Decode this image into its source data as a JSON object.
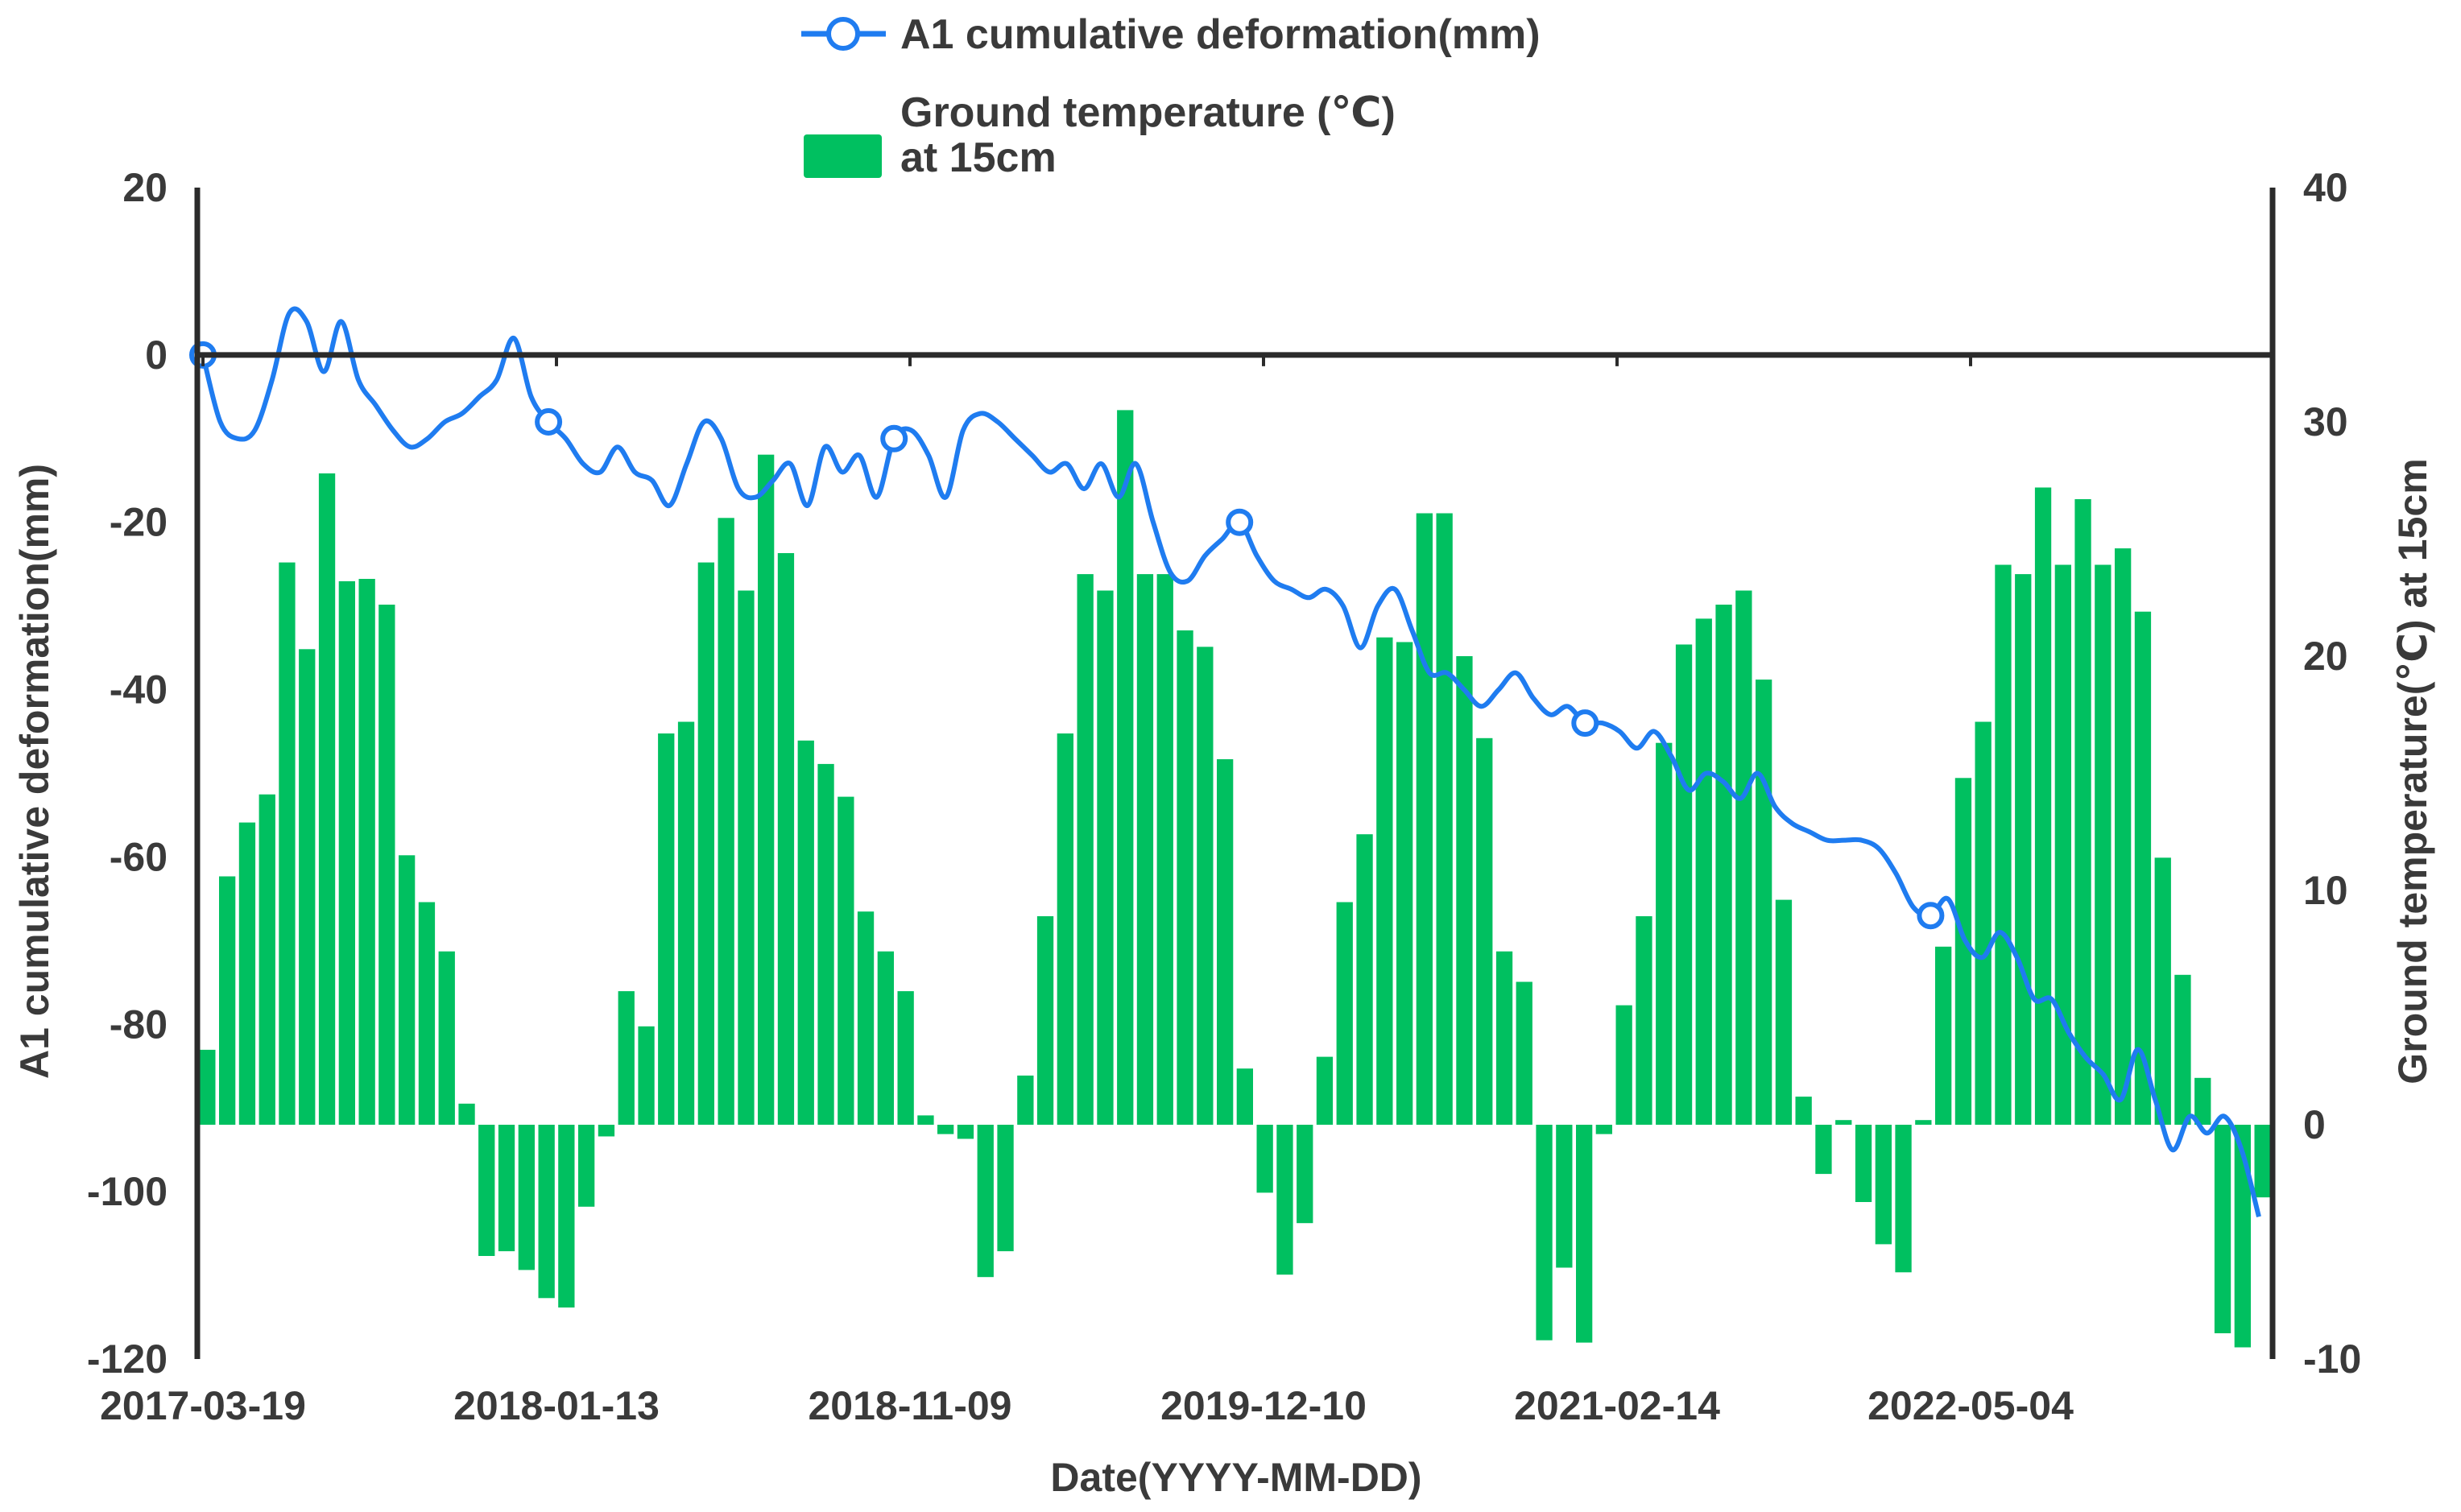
{
  "chart_data": {
    "type": "bar+line",
    "xlabel": "Date(YYYY-MM-DD)",
    "y_left_label": "A1 cumulative deformation(mm)",
    "y_right_label": "Ground temperature(℃) at 15cm",
    "y_left_ticks": [
      "20",
      "0",
      "-20",
      "-40",
      "-60",
      "-80",
      "-100",
      "-120"
    ],
    "y_right_ticks": [
      "40",
      "30",
      "20",
      "10",
      "0",
      "-10"
    ],
    "y_left_lim": [
      -120,
      20
    ],
    "y_right_lim": [
      -10,
      40
    ],
    "x_ticks": [
      "2017-03-19",
      "2018-01-13",
      "2018-11-09",
      "2019-12-10",
      "2021-02-14",
      "2022-05-04"
    ],
    "grid": false,
    "legend": {
      "position": "top"
    },
    "colors": {
      "line": "#1f7cf0",
      "bar": "#00c060",
      "axis": "#2b2b2b",
      "text": "#3a3a3a"
    },
    "series": [
      {
        "name": "A1 cumulative deformation(mm)",
        "kind": "line",
        "axis": "left",
        "color": "#1f7cf0",
        "values": [
          0,
          -8,
          -10,
          -9,
          -3,
          5,
          4,
          -2,
          4,
          -3,
          -6,
          -9,
          -11,
          -10,
          -8,
          -7,
          -5,
          -3,
          2,
          -5,
          -8,
          -10,
          -13,
          -14,
          -11,
          -14,
          -15,
          -18,
          -13,
          -8,
          -10,
          -16,
          -17,
          -15,
          -13,
          -18,
          -11,
          -14,
          -12,
          -17,
          -10,
          -9,
          -12,
          -17,
          -9,
          -7,
          -8,
          -10,
          -12,
          -14,
          -13,
          -16,
          -13,
          -17,
          -13,
          -20,
          -26,
          -27,
          -24,
          -22,
          -20,
          -24,
          -27,
          -28,
          -29,
          -28,
          -30,
          -35,
          -30,
          -28,
          -33,
          -38,
          -38,
          -40,
          -42,
          -40,
          -38,
          -41,
          -43,
          -42,
          -44,
          -44,
          -45,
          -47,
          -45,
          -48,
          -52,
          -50,
          -51,
          -53,
          -50,
          -54,
          -56,
          -57,
          -58,
          -58,
          -58,
          -59,
          -62,
          -66,
          -67,
          -65,
          -70,
          -72,
          -69,
          -72,
          -77,
          -77,
          -81,
          -84,
          -86,
          -89,
          -83,
          -89,
          -95,
          -91,
          -93,
          -91,
          -95,
          -103
        ]
      },
      {
        "name": "Ground temperature (℃) at 15cm",
        "kind": "bar",
        "axis": "right",
        "color": "#00c060",
        "values": [
          3.2,
          10.6,
          12.9,
          14.1,
          24.0,
          20.3,
          27.8,
          23.2,
          23.3,
          22.2,
          11.5,
          9.5,
          7.4,
          0.9,
          -5.6,
          -5.4,
          -6.2,
          -7.4,
          -7.8,
          -3.5,
          -0.5,
          5.7,
          4.2,
          16.7,
          17.2,
          24.0,
          25.9,
          22.8,
          28.6,
          24.4,
          16.4,
          15.4,
          14.0,
          9.1,
          7.4,
          5.7,
          0.4,
          -0.4,
          -0.6,
          -6.5,
          -5.4,
          2.1,
          8.9,
          16.7,
          23.5,
          22.8,
          30.5,
          23.5,
          23.5,
          21.1,
          20.4,
          15.6,
          2.4,
          -2.9,
          -6.4,
          -4.2,
          2.9,
          9.5,
          12.4,
          20.8,
          20.6,
          26.1,
          26.1,
          20.0,
          16.5,
          7.4,
          6.1,
          -9.2,
          -6.1,
          -9.3,
          -0.4,
          5.1,
          8.9,
          16.3,
          20.5,
          21.6,
          22.2,
          22.8,
          19.0,
          9.6,
          1.2,
          -2.1,
          0.2,
          -3.3,
          -5.1,
          -6.3,
          0.2,
          7.6,
          14.8,
          17.2,
          23.9,
          23.5,
          27.2,
          23.9,
          26.7,
          23.9,
          24.6,
          21.9,
          11.4,
          6.4,
          2.0,
          -8.9,
          -9.5,
          -3.1
        ]
      }
    ]
  }
}
